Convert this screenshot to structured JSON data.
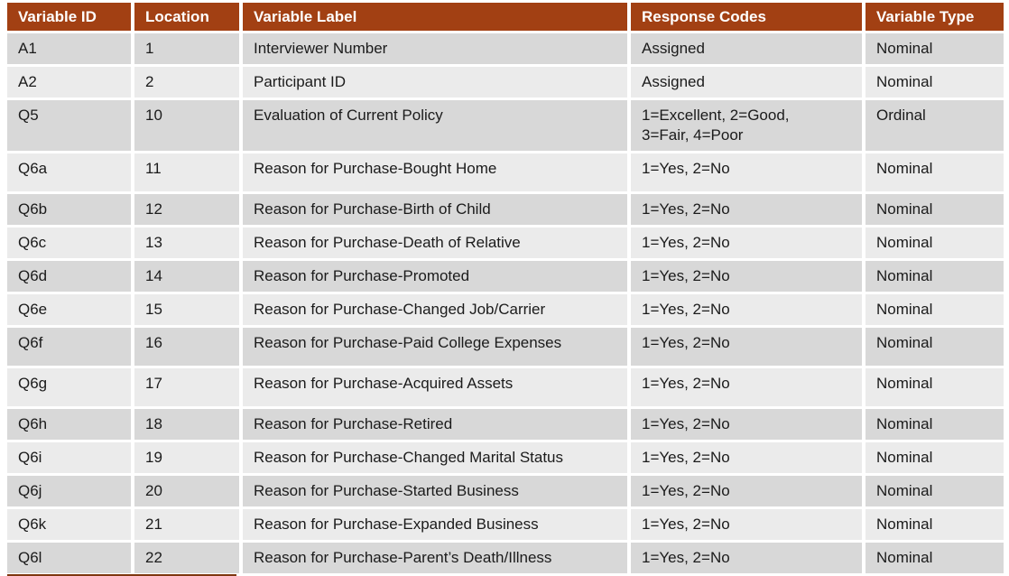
{
  "colors": {
    "header_bg": "#A24013",
    "header_text": "#FFFFFF",
    "row_odd_bg": "#D8D8D8",
    "row_even_bg": "#EBEBEB",
    "body_text": "#1B1B1B"
  },
  "table": {
    "columns": {
      "id": "Variable ID",
      "location": "Location",
      "label": "Variable Label",
      "codes": "Response Codes",
      "type": "Variable Type"
    },
    "rows": [
      {
        "id": "A1",
        "location": "1",
        "label": "Interviewer Number",
        "codes": "Assigned",
        "type": "Nominal"
      },
      {
        "id": "A2",
        "location": "2",
        "label": "Participant ID",
        "codes": "Assigned",
        "type": "Nominal"
      },
      {
        "id": "Q5",
        "location": "10",
        "label": "Evaluation of Current Policy",
        "codes": "1=Excellent, 2=Good, 3=Fair, 4=Poor",
        "type": "Ordinal"
      },
      {
        "id": "Q6a",
        "location": "11",
        "label": "Reason for Purchase-Bought Home",
        "codes": "1=Yes, 2=No",
        "type": "Nominal"
      },
      {
        "id": "Q6b",
        "location": "12",
        "label": "Reason for Purchase-Birth of Child",
        "codes": "1=Yes, 2=No",
        "type": "Nominal"
      },
      {
        "id": "Q6c",
        "location": "13",
        "label": "Reason for Purchase-Death of Relative",
        "codes": "1=Yes, 2=No",
        "type": "Nominal"
      },
      {
        "id": "Q6d",
        "location": "14",
        "label": "Reason for Purchase-Promoted",
        "codes": "1=Yes, 2=No",
        "type": "Nominal"
      },
      {
        "id": "Q6e",
        "location": "15",
        "label": "Reason for Purchase-Changed Job/Carrier",
        "codes": "1=Yes, 2=No",
        "type": "Nominal"
      },
      {
        "id": "Q6f",
        "location": "16",
        "label": "Reason for Purchase-Paid College Expenses",
        "codes": "1=Yes, 2=No",
        "type": "Nominal"
      },
      {
        "id": "Q6g",
        "location": "17",
        "label": "Reason for Purchase-Acquired Assets",
        "codes": "1=Yes, 2=No",
        "type": "Nominal"
      },
      {
        "id": "Q6h",
        "location": "18",
        "label": "Reason for Purchase-Retired",
        "codes": "1=Yes, 2=No",
        "type": "Nominal"
      },
      {
        "id": "Q6i",
        "location": "19",
        "label": "Reason for Purchase-Changed Marital Status",
        "codes": "1=Yes, 2=No",
        "type": "Nominal"
      },
      {
        "id": "Q6j",
        "location": "20",
        "label": "Reason for Purchase-Started Business",
        "codes": "1=Yes, 2=No",
        "type": "Nominal"
      },
      {
        "id": "Q6k",
        "location": "21",
        "label": "Reason for Purchase-Expanded Business",
        "codes": "1=Yes, 2=No",
        "type": "Nominal"
      },
      {
        "id": "Q6l",
        "location": "22",
        "label": "Reason for Purchase-Parent’s Death/Illness",
        "codes": "1=Yes, 2=No",
        "type": "Nominal"
      }
    ]
  }
}
